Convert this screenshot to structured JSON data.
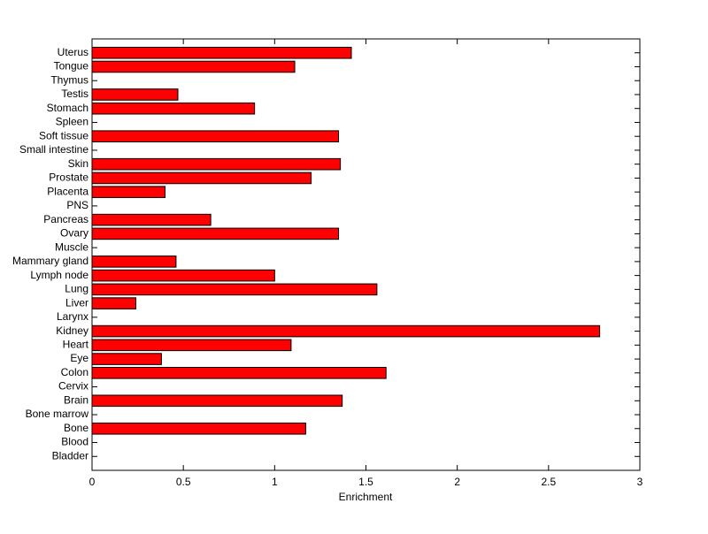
{
  "chart_data": {
    "type": "barh",
    "categories": [
      "Bladder",
      "Blood",
      "Bone",
      "Bone marrow",
      "Brain",
      "Cervix",
      "Colon",
      "Eye",
      "Heart",
      "Kidney",
      "Larynx",
      "Liver",
      "Lung",
      "Lymph node",
      "Mammary gland",
      "Muscle",
      "Ovary",
      "Pancreas",
      "PNS",
      "Placenta",
      "Prostate",
      "Skin",
      "Small intestine",
      "Soft tissue",
      "Spleen",
      "Stomach",
      "Testis",
      "Thymus",
      "Tongue",
      "Uterus"
    ],
    "values": [
      0,
      0,
      1.17,
      0,
      1.37,
      0,
      1.61,
      0.38,
      1.09,
      2.78,
      0,
      0.24,
      1.56,
      1.0,
      0.46,
      0,
      1.35,
      0.65,
      0,
      0.4,
      1.2,
      1.36,
      0,
      1.35,
      0,
      0.89,
      0.47,
      0,
      1.11,
      1.42
    ],
    "color": "#ff0000",
    "xlabel": "Enrichment",
    "xlim": [
      0,
      3
    ],
    "xticks": [
      0,
      0.5,
      1,
      1.5,
      2,
      2.5,
      3
    ]
  }
}
